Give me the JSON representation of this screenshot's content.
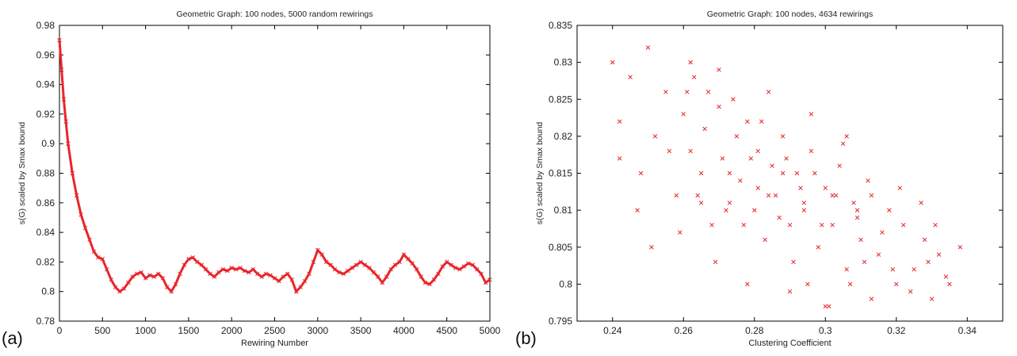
{
  "colors": {
    "series": "#e8262b",
    "axis": "#000000",
    "background": "#ffffff"
  },
  "panels": [
    {
      "letter": "(a)"
    },
    {
      "letter": "(b)"
    }
  ],
  "chart_data": [
    {
      "type": "line",
      "title": "Geometric Graph: 100 nodes, 5000 random rewirings",
      "xlabel": "Rewiring Number",
      "ylabel": "s(G) scaled by Smax bound",
      "xlim": [
        0,
        5000
      ],
      "ylim": [
        0.78,
        0.98
      ],
      "xticks": [
        0,
        500,
        1000,
        1500,
        2000,
        2500,
        3000,
        3500,
        4000,
        4500,
        5000
      ],
      "xtick_labels": [
        "0",
        "500",
        "1000",
        "1500",
        "2000",
        "2500",
        "3000",
        "3500",
        "4000",
        "4500",
        "5000"
      ],
      "yticks": [
        0.78,
        0.8,
        0.82,
        0.84,
        0.86,
        0.88,
        0.9,
        0.92,
        0.94,
        0.96,
        0.98
      ],
      "ytick_labels": [
        "0.78",
        "0.8",
        "0.82",
        "0.84",
        "0.86",
        "0.88",
        "0.9",
        "0.92",
        "0.94",
        "0.96",
        "0.98"
      ],
      "marker": "x",
      "grid": false,
      "series": [
        {
          "x": [
            0,
            25,
            50,
            75,
            100,
            150,
            200,
            250,
            300,
            350,
            400,
            450,
            500,
            550,
            600,
            650,
            700,
            750,
            800,
            850,
            900,
            950,
            1000,
            1050,
            1100,
            1150,
            1200,
            1250,
            1300,
            1350,
            1400,
            1450,
            1500,
            1550,
            1600,
            1650,
            1700,
            1750,
            1800,
            1850,
            1900,
            1950,
            2000,
            2050,
            2100,
            2150,
            2200,
            2250,
            2300,
            2350,
            2400,
            2450,
            2500,
            2550,
            2600,
            2650,
            2700,
            2750,
            2800,
            2850,
            2900,
            2950,
            3000,
            3050,
            3100,
            3150,
            3200,
            3250,
            3300,
            3350,
            3400,
            3450,
            3500,
            3550,
            3600,
            3650,
            3700,
            3750,
            3800,
            3850,
            3900,
            3950,
            4000,
            4050,
            4100,
            4150,
            4200,
            4250,
            4300,
            4350,
            4400,
            4450,
            4500,
            4550,
            4600,
            4650,
            4700,
            4750,
            4800,
            4850,
            4900,
            4950,
            5000
          ],
          "y": [
            0.97,
            0.95,
            0.93,
            0.915,
            0.9,
            0.88,
            0.865,
            0.852,
            0.843,
            0.835,
            0.827,
            0.823,
            0.822,
            0.815,
            0.808,
            0.803,
            0.8,
            0.802,
            0.806,
            0.81,
            0.812,
            0.813,
            0.809,
            0.811,
            0.81,
            0.812,
            0.809,
            0.803,
            0.8,
            0.805,
            0.812,
            0.818,
            0.822,
            0.823,
            0.82,
            0.818,
            0.815,
            0.812,
            0.81,
            0.813,
            0.815,
            0.814,
            0.816,
            0.815,
            0.816,
            0.814,
            0.813,
            0.815,
            0.812,
            0.81,
            0.812,
            0.811,
            0.809,
            0.807,
            0.81,
            0.812,
            0.808,
            0.8,
            0.803,
            0.807,
            0.812,
            0.82,
            0.828,
            0.825,
            0.82,
            0.818,
            0.815,
            0.813,
            0.812,
            0.814,
            0.816,
            0.818,
            0.82,
            0.818,
            0.816,
            0.813,
            0.81,
            0.806,
            0.81,
            0.815,
            0.818,
            0.82,
            0.825,
            0.822,
            0.819,
            0.815,
            0.81,
            0.806,
            0.805,
            0.808,
            0.812,
            0.817,
            0.82,
            0.818,
            0.816,
            0.815,
            0.817,
            0.819,
            0.818,
            0.815,
            0.812,
            0.806,
            0.808
          ]
        }
      ]
    },
    {
      "type": "scatter",
      "title": "Geometric Graph: 100 nodes, 4634 rewirings",
      "xlabel": "Clustering Coefficient",
      "ylabel": "s(G) scaled by Smax bound",
      "xlim": [
        0.23,
        0.35
      ],
      "ylim": [
        0.795,
        0.835
      ],
      "xticks": [
        0.24,
        0.26,
        0.28,
        0.3,
        0.32,
        0.34
      ],
      "xtick_labels": [
        "0.24",
        "0.26",
        "0.28",
        "0.3",
        "0.32",
        "0.34"
      ],
      "yticks": [
        0.795,
        0.8,
        0.805,
        0.81,
        0.815,
        0.82,
        0.825,
        0.83,
        0.835
      ],
      "ytick_labels": [
        "0.795",
        "0.8",
        "0.805",
        "0.81",
        "0.815",
        "0.82",
        "0.825",
        "0.83",
        "0.835"
      ],
      "marker": "x",
      "grid": false,
      "series": [
        {
          "x": [
            0.24,
            0.242,
            0.245,
            0.248,
            0.25,
            0.252,
            0.255,
            0.258,
            0.26,
            0.262,
            0.263,
            0.265,
            0.266,
            0.268,
            0.27,
            0.271,
            0.273,
            0.275,
            0.276,
            0.278,
            0.28,
            0.281,
            0.283,
            0.285,
            0.286,
            0.288,
            0.29,
            0.292,
            0.294,
            0.296,
            0.298,
            0.3,
            0.302,
            0.304,
            0.306,
            0.308,
            0.31,
            0.312,
            0.315,
            0.318,
            0.32,
            0.322,
            0.325,
            0.328,
            0.33,
            0.332,
            0.335,
            0.338,
            0.242,
            0.247,
            0.251,
            0.256,
            0.259,
            0.261,
            0.264,
            0.267,
            0.269,
            0.272,
            0.274,
            0.277,
            0.279,
            0.282,
            0.284,
            0.287,
            0.289,
            0.291,
            0.293,
            0.295,
            0.297,
            0.299,
            0.301,
            0.303,
            0.305,
            0.307,
            0.309,
            0.311,
            0.313,
            0.316,
            0.319,
            0.321,
            0.324,
            0.327,
            0.329,
            0.331,
            0.334,
            0.262,
            0.27,
            0.278,
            0.284,
            0.29,
            0.296,
            0.3,
            0.306,
            0.313,
            0.265,
            0.273,
            0.281,
            0.288,
            0.294,
            0.302,
            0.309
          ],
          "y": [
            0.83,
            0.822,
            0.828,
            0.815,
            0.832,
            0.82,
            0.826,
            0.812,
            0.823,
            0.818,
            0.828,
            0.815,
            0.821,
            0.808,
            0.824,
            0.817,
            0.811,
            0.82,
            0.814,
            0.822,
            0.81,
            0.818,
            0.806,
            0.816,
            0.812,
            0.82,
            0.808,
            0.815,
            0.81,
            0.818,
            0.805,
            0.813,
            0.808,
            0.816,
            0.802,
            0.811,
            0.806,
            0.814,
            0.804,
            0.81,
            0.8,
            0.808,
            0.802,
            0.806,
            0.798,
            0.804,
            0.8,
            0.805,
            0.817,
            0.81,
            0.805,
            0.818,
            0.807,
            0.826,
            0.812,
            0.826,
            0.803,
            0.81,
            0.825,
            0.808,
            0.817,
            0.822,
            0.812,
            0.809,
            0.817,
            0.803,
            0.813,
            0.8,
            0.815,
            0.808,
            0.797,
            0.812,
            0.819,
            0.8,
            0.809,
            0.803,
            0.812,
            0.807,
            0.802,
            0.813,
            0.799,
            0.811,
            0.803,
            0.808,
            0.801,
            0.83,
            0.829,
            0.8,
            0.826,
            0.799,
            0.823,
            0.797,
            0.82,
            0.798,
            0.811,
            0.815,
            0.813,
            0.815,
            0.811,
            0.812,
            0.81
          ]
        }
      ]
    }
  ]
}
